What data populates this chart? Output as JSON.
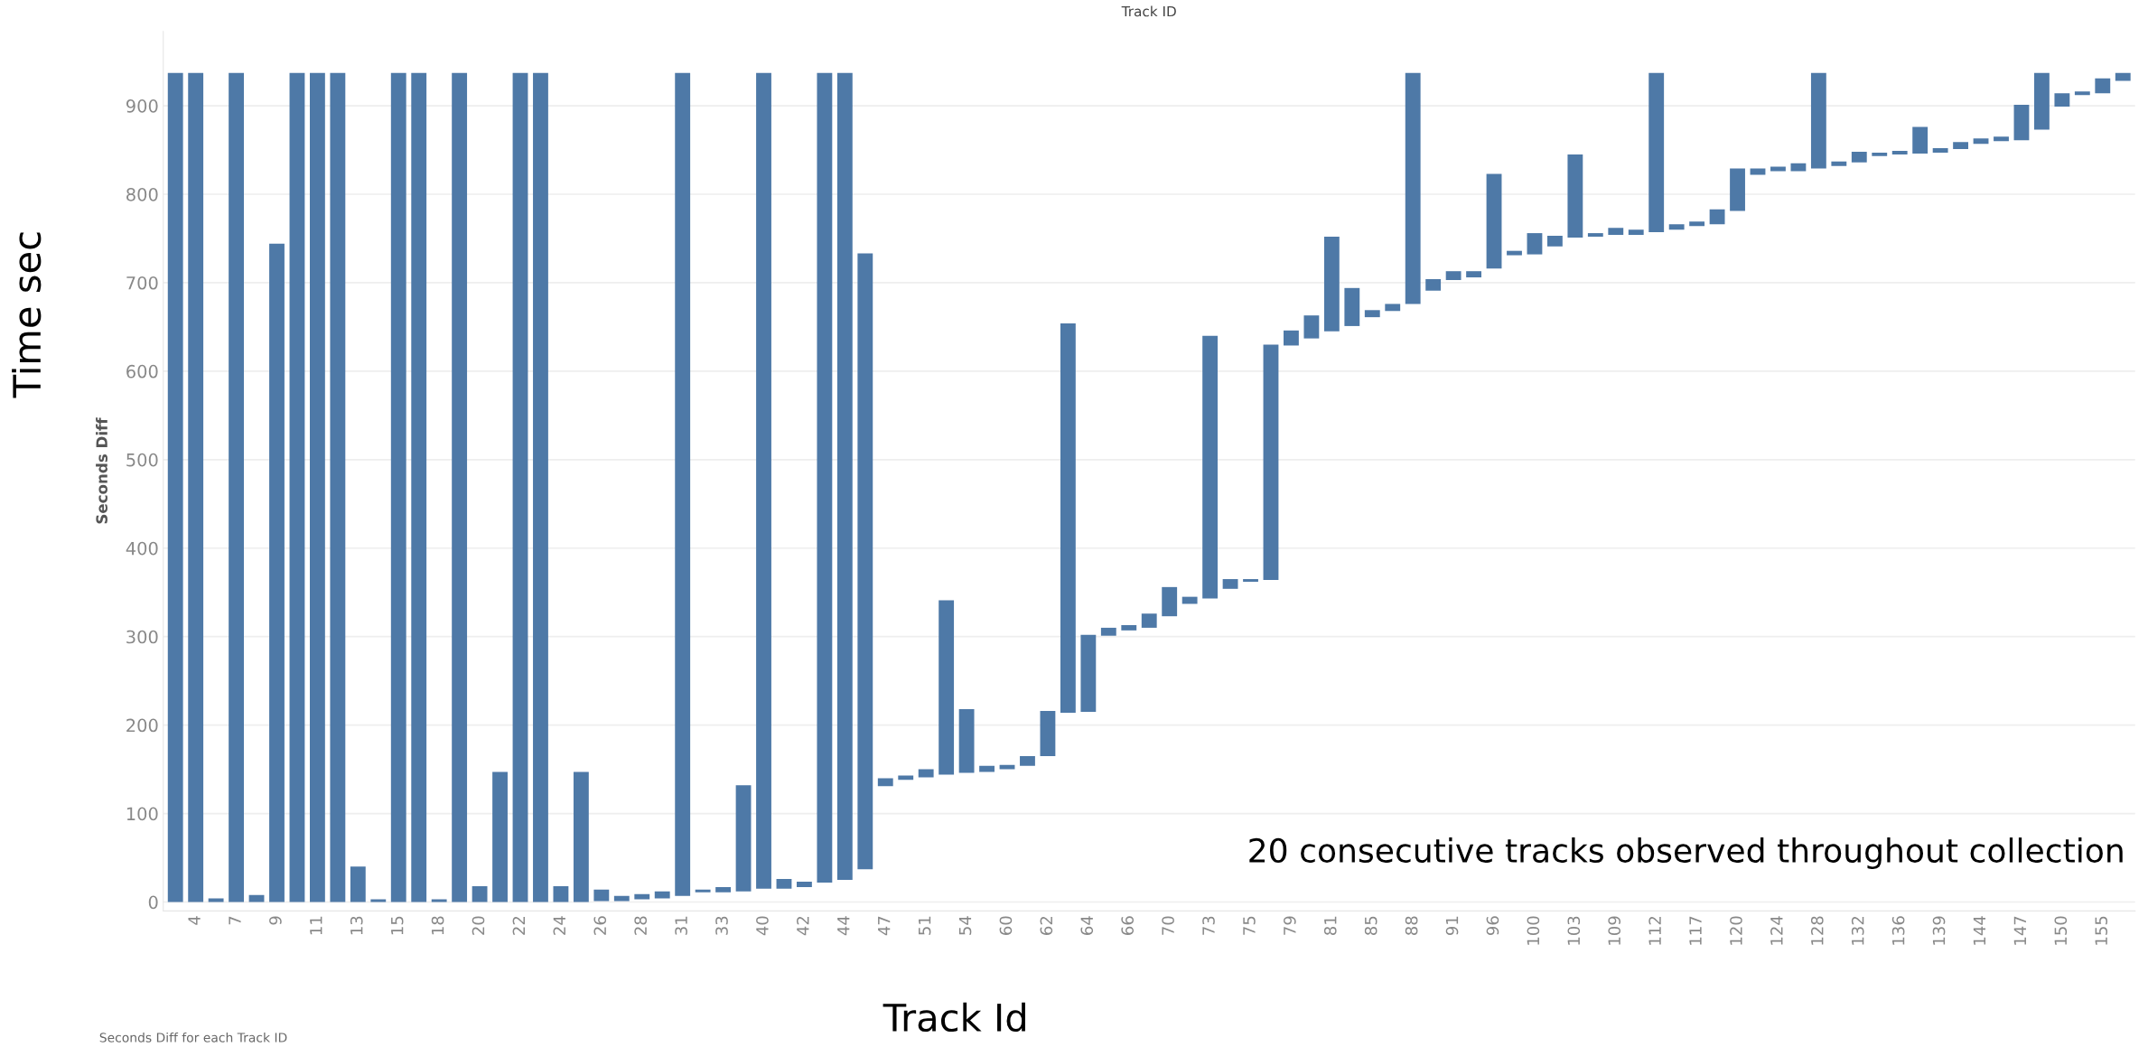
{
  "chart_data": {
    "type": "bar",
    "title": "Track ID",
    "xlabel": "Track Id",
    "ylabel": "Time sec",
    "annotations": [
      "Seconds Diff",
      "20 consecutive tracks observed throughout collection",
      "Seconds Diff for each Track ID"
    ],
    "categories": [
      null,
      "4",
      null,
      "7",
      null,
      "9",
      null,
      "11",
      null,
      "13",
      null,
      "15",
      null,
      "18",
      null,
      "20",
      null,
      "22",
      null,
      "24",
      null,
      "26",
      null,
      "28",
      null,
      "31",
      null,
      "33",
      null,
      "40",
      null,
      "42",
      null,
      "44",
      null,
      "47",
      null,
      "51",
      null,
      "54",
      null,
      "60",
      null,
      "62",
      null,
      "64",
      null,
      "66",
      null,
      "70",
      null,
      "73",
      null,
      "75",
      null,
      "79",
      null,
      "81",
      null,
      "85",
      null,
      "88",
      null,
      "91",
      null,
      "96",
      null,
      "100",
      null,
      "103",
      null,
      "109",
      null,
      "112",
      null,
      "117",
      null,
      "120",
      null,
      "124",
      null,
      "128",
      null,
      "132",
      null,
      "136",
      null,
      "139",
      null,
      "144",
      null,
      "147",
      null,
      "150",
      null,
      "155",
      null
    ],
    "base": [
      0,
      0,
      0,
      0,
      0,
      0,
      0,
      0,
      0,
      0,
      0,
      0,
      0,
      0,
      0,
      0,
      0,
      0,
      0,
      0,
      0,
      1,
      1,
      3,
      4,
      7,
      11,
      11,
      12,
      15,
      15,
      17,
      22,
      25,
      37,
      131,
      138,
      141,
      144,
      146,
      147,
      150,
      154,
      165,
      214,
      215,
      301,
      307,
      310,
      323,
      337,
      343,
      354,
      362,
      364,
      629,
      637,
      645,
      651,
      661,
      668,
      676,
      691,
      703,
      706,
      716,
      731,
      732,
      741,
      751,
      752,
      754,
      754,
      757,
      760,
      764,
      766,
      781,
      822,
      826,
      826,
      829,
      832,
      836,
      843,
      845,
      846,
      847,
      851,
      857,
      860,
      861,
      873,
      899,
      912,
      914,
      928
    ],
    "values": [
      937,
      937,
      4,
      937,
      8,
      744,
      937,
      937,
      937,
      40,
      3,
      937,
      937,
      3,
      937,
      18,
      147,
      937,
      937,
      18,
      147,
      13,
      6,
      6,
      8,
      930,
      3,
      6,
      120,
      922,
      11,
      6,
      915,
      912,
      696,
      9,
      5,
      9,
      197,
      72,
      7,
      5,
      11,
      51,
      440,
      87,
      9,
      6,
      16,
      33,
      8,
      297,
      11,
      3,
      266,
      17,
      26,
      107,
      43,
      8,
      8,
      261,
      13,
      10,
      7,
      107,
      5,
      24,
      12,
      94,
      4,
      8,
      6,
      180,
      6,
      5,
      17,
      48,
      7,
      5,
      9,
      108,
      5,
      12,
      4,
      4,
      30,
      5,
      8,
      6,
      5,
      40,
      64,
      15,
      4,
      17,
      9
    ],
    "color": "#4e79a7",
    "ylim": [
      -10,
      984
    ],
    "yticks": [
      0,
      100,
      200,
      300,
      400,
      500,
      600,
      700,
      800,
      900
    ],
    "grid": "y"
  }
}
